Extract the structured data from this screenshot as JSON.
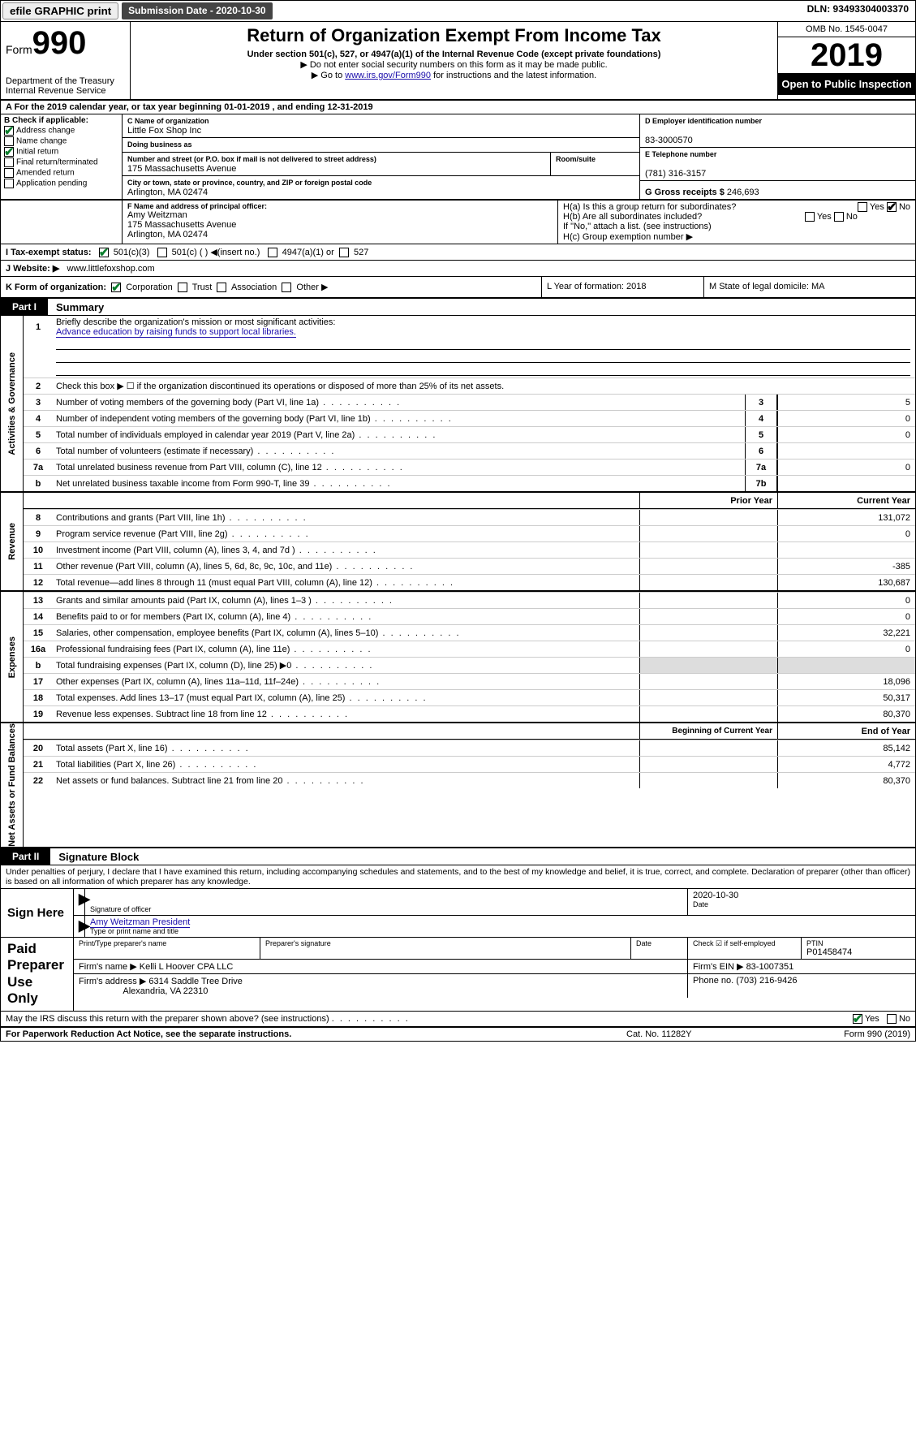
{
  "topbar": {
    "efile": "efile GRAPHIC print",
    "submission_label": "Submission Date - 2020-10-30",
    "dln": "DLN: 93493304003370"
  },
  "header": {
    "form_prefix": "Form",
    "form_number": "990",
    "dept1": "Department of the Treasury",
    "dept2": "Internal Revenue Service",
    "title": "Return of Organization Exempt From Income Tax",
    "subtitle": "Under section 501(c), 527, or 4947(a)(1) of the Internal Revenue Code (except private foundations)",
    "note1": "▶ Do not enter social security numbers on this form as it may be made public.",
    "note2_pre": "▶ Go to ",
    "note2_link": "www.irs.gov/Form990",
    "note2_post": " for instructions and the latest information.",
    "omb": "OMB No. 1545-0047",
    "year": "2019",
    "open": "Open to Public Inspection"
  },
  "rowA": "A   For the 2019 calendar year, or tax year beginning 01-01-2019    , and ending 12-31-2019",
  "boxB": {
    "label": "B Check if applicable:",
    "opts": [
      "Address change",
      "Name change",
      "Initial return",
      "Final return/terminated",
      "Amended return",
      "Application pending"
    ],
    "checked": [
      true,
      false,
      true,
      false,
      false,
      false
    ]
  },
  "boxC": {
    "name_lbl": "C Name of organization",
    "name": "Little Fox Shop Inc",
    "dba_lbl": "Doing business as",
    "dba": "",
    "addr_lbl": "Number and street (or P.O. box if mail is not delivered to street address)",
    "room_lbl": "Room/suite",
    "addr": "175 Massachusetts Avenue",
    "city_lbl": "City or town, state or province, country, and ZIP or foreign postal code",
    "city": "Arlington, MA  02474"
  },
  "boxD": {
    "lbl": "D Employer identification number",
    "val": "83-3000570"
  },
  "boxE": {
    "lbl": "E Telephone number",
    "val": "(781) 316-3157"
  },
  "boxG": {
    "lbl": "G Gross receipts $",
    "val": "246,693"
  },
  "boxF": {
    "lbl": "F  Name and address of principal officer:",
    "name": "Amy Weitzman",
    "addr1": "175 Massachusetts Avenue",
    "addr2": "Arlington, MA  02474"
  },
  "boxH": {
    "a": "H(a)  Is this a group return for subordinates?",
    "b": "H(b)  Are all subordinates included?",
    "note": "If \"No,\" attach a list. (see instructions)",
    "c": "H(c)  Group exemption number ▶",
    "yes": "Yes",
    "no": "No"
  },
  "rowI": {
    "lbl": "I     Tax-exempt status:",
    "o1": "501(c)(3)",
    "o2": "501(c) (  ) ◀(insert no.)",
    "o3": "4947(a)(1) or",
    "o4": "527"
  },
  "rowJ": {
    "lbl": "J    Website: ▶",
    "val": "www.littlefoxshop.com"
  },
  "rowK": {
    "lbl": "K Form of organization:",
    "o1": "Corporation",
    "o2": "Trust",
    "o3": "Association",
    "o4": "Other ▶",
    "L": "L Year of formation: 2018",
    "M": "M State of legal domicile: MA"
  },
  "part1": {
    "tag": "Part I",
    "title": "Summary",
    "sections": {
      "gov": "Activities & Governance",
      "rev": "Revenue",
      "exp": "Expenses",
      "net": "Net Assets or Fund Balances"
    },
    "l1": "Briefly describe the organization's mission or most significant activities:",
    "l1val": "Advance education by raising funds to support local libraries.",
    "l2": "Check this box ▶ ☐ if the organization discontinued its operations or disposed of more than 25% of its net assets.",
    "lines_gov": [
      {
        "n": "3",
        "d": "Number of voting members of the governing body (Part VI, line 1a)",
        "b": "3",
        "v": "5"
      },
      {
        "n": "4",
        "d": "Number of independent voting members of the governing body (Part VI, line 1b)",
        "b": "4",
        "v": "0"
      },
      {
        "n": "5",
        "d": "Total number of individuals employed in calendar year 2019 (Part V, line 2a)",
        "b": "5",
        "v": "0"
      },
      {
        "n": "6",
        "d": "Total number of volunteers (estimate if necessary)",
        "b": "6",
        "v": ""
      },
      {
        "n": "7a",
        "d": "Total unrelated business revenue from Part VIII, column (C), line 12",
        "b": "7a",
        "v": "0"
      },
      {
        "n": "b",
        "d": "Net unrelated business taxable income from Form 990-T, line 39",
        "b": "7b",
        "v": ""
      }
    ],
    "colhdr_prior": "Prior Year",
    "colhdr_curr": "Current Year",
    "lines_rev": [
      {
        "n": "8",
        "d": "Contributions and grants (Part VIII, line 1h)",
        "p": "",
        "c": "131,072"
      },
      {
        "n": "9",
        "d": "Program service revenue (Part VIII, line 2g)",
        "p": "",
        "c": "0"
      },
      {
        "n": "10",
        "d": "Investment income (Part VIII, column (A), lines 3, 4, and 7d )",
        "p": "",
        "c": ""
      },
      {
        "n": "11",
        "d": "Other revenue (Part VIII, column (A), lines 5, 6d, 8c, 9c, 10c, and 11e)",
        "p": "",
        "c": "-385"
      },
      {
        "n": "12",
        "d": "Total revenue—add lines 8 through 11 (must equal Part VIII, column (A), line 12)",
        "p": "",
        "c": "130,687"
      }
    ],
    "lines_exp": [
      {
        "n": "13",
        "d": "Grants and similar amounts paid (Part IX, column (A), lines 1–3 )",
        "p": "",
        "c": "0"
      },
      {
        "n": "14",
        "d": "Benefits paid to or for members (Part IX, column (A), line 4)",
        "p": "",
        "c": "0"
      },
      {
        "n": "15",
        "d": "Salaries, other compensation, employee benefits (Part IX, column (A), lines 5–10)",
        "p": "",
        "c": "32,221"
      },
      {
        "n": "16a",
        "d": "Professional fundraising fees (Part IX, column (A), line 11e)",
        "p": "",
        "c": "0"
      },
      {
        "n": "b",
        "d": "Total fundraising expenses (Part IX, column (D), line 25) ▶0",
        "p": "shade",
        "c": "shade"
      },
      {
        "n": "17",
        "d": "Other expenses (Part IX, column (A), lines 11a–11d, 11f–24e)",
        "p": "",
        "c": "18,096"
      },
      {
        "n": "18",
        "d": "Total expenses. Add lines 13–17 (must equal Part IX, column (A), line 25)",
        "p": "",
        "c": "50,317"
      },
      {
        "n": "19",
        "d": "Revenue less expenses. Subtract line 18 from line 12",
        "p": "",
        "c": "80,370"
      }
    ],
    "colhdr_beg": "Beginning of Current Year",
    "colhdr_end": "End of Year",
    "lines_net": [
      {
        "n": "20",
        "d": "Total assets (Part X, line 16)",
        "p": "",
        "c": "85,142"
      },
      {
        "n": "21",
        "d": "Total liabilities (Part X, line 26)",
        "p": "",
        "c": "4,772"
      },
      {
        "n": "22",
        "d": "Net assets or fund balances. Subtract line 21 from line 20",
        "p": "",
        "c": "80,370"
      }
    ]
  },
  "part2": {
    "tag": "Part II",
    "title": "Signature Block",
    "decl": "Under penalties of perjury, I declare that I have examined this return, including accompanying schedules and statements, and to the best of my knowledge and belief, it is true, correct, and complete. Declaration of preparer (other than officer) is based on all information of which preparer has any knowledge."
  },
  "sign": {
    "here": "Sign Here",
    "sig_of_officer": "Signature of officer",
    "date_lbl": "Date",
    "date": "2020-10-30",
    "name": "Amy Weitzman President",
    "name_lbl": "Type or print name and title"
  },
  "paid": {
    "title": "Paid Preparer Use Only",
    "prep_name_lbl": "Print/Type preparer's name",
    "prep_sig_lbl": "Preparer's signature",
    "date_lbl": "Date",
    "check_lbl": "Check ☑ if self-employed",
    "ptin_lbl": "PTIN",
    "ptin": "P01458474",
    "firm_name_lbl": "Firm's name     ▶",
    "firm_name": "Kelli L Hoover CPA LLC",
    "firm_ein_lbl": "Firm's EIN ▶",
    "firm_ein": "83-1007351",
    "firm_addr_lbl": "Firm's address ▶",
    "firm_addr1": "6314 Saddle Tree Drive",
    "firm_addr2": "Alexandria, VA  22310",
    "phone_lbl": "Phone no.",
    "phone": "(703) 216-9426"
  },
  "discuss": "May the IRS discuss this return with the preparer shown above? (see instructions)",
  "footer": {
    "l": "For Paperwork Reduction Act Notice, see the separate instructions.",
    "m": "Cat. No. 11282Y",
    "r": "Form 990 (2019)"
  }
}
